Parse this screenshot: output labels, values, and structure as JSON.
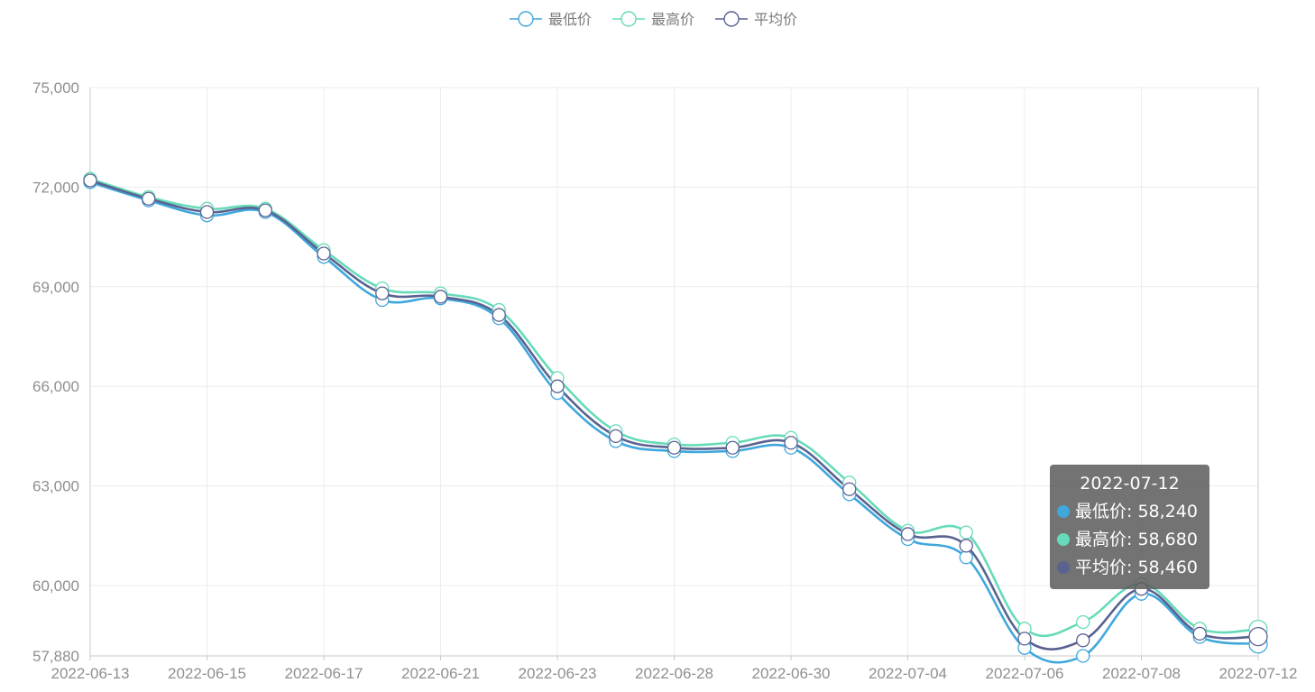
{
  "chart_data": {
    "type": "line",
    "smooth": true,
    "categories": [
      "2022-06-13",
      "2022-06-14",
      "2022-06-15",
      "2022-06-16",
      "2022-06-17",
      "2022-06-20",
      "2022-06-21",
      "2022-06-22",
      "2022-06-23",
      "2022-06-24",
      "2022-06-28",
      "2022-06-29",
      "2022-06-30",
      "2022-07-01",
      "2022-07-04",
      "2022-07-05",
      "2022-07-06",
      "2022-07-07",
      "2022-07-08",
      "2022-07-11",
      "2022-07-12"
    ],
    "x_tick_labels": [
      "2022-06-13",
      "2022-06-15",
      "2022-06-17",
      "2022-06-21",
      "2022-06-23",
      "2022-06-28",
      "2022-06-30",
      "2022-07-04",
      "2022-07-06",
      "2022-07-08",
      "2022-07-12"
    ],
    "series": [
      {
        "name": "最低价",
        "color": "#3fa7dc",
        "values": [
          72150,
          71600,
          71150,
          71250,
          69900,
          68600,
          68650,
          68050,
          65800,
          64350,
          64050,
          64050,
          64150,
          62750,
          61400,
          60850,
          58120,
          57880,
          59750,
          58450,
          58240
        ]
      },
      {
        "name": "最高价",
        "color": "#66dbb9",
        "values": [
          72250,
          71700,
          71350,
          71350,
          70100,
          68950,
          68800,
          68300,
          66250,
          64650,
          64250,
          64300,
          64450,
          63100,
          61650,
          61600,
          58700,
          58900,
          60050,
          58700,
          58680
        ]
      },
      {
        "name": "平均价",
        "color": "#5a6290",
        "values": [
          72200,
          71650,
          71250,
          71300,
          70000,
          68800,
          68700,
          68150,
          66000,
          64500,
          64150,
          64150,
          64300,
          62900,
          61550,
          61200,
          58400,
          58350,
          59900,
          58550,
          58460
        ]
      }
    ],
    "y_ticks": [
      75000,
      72000,
      69000,
      66000,
      63000,
      60000,
      57880
    ],
    "ylim": [
      57880,
      75000
    ],
    "grid": true,
    "legend_position": "top-center",
    "tooltip": {
      "title": "2022-07-12",
      "rows": [
        {
          "label": "最低价",
          "value": "58,240",
          "color": "#3fa7dc"
        },
        {
          "label": "最高价",
          "value": "58,680",
          "color": "#66dbb9"
        },
        {
          "label": "平均价",
          "value": "58,460",
          "color": "#5a6290"
        }
      ]
    }
  }
}
